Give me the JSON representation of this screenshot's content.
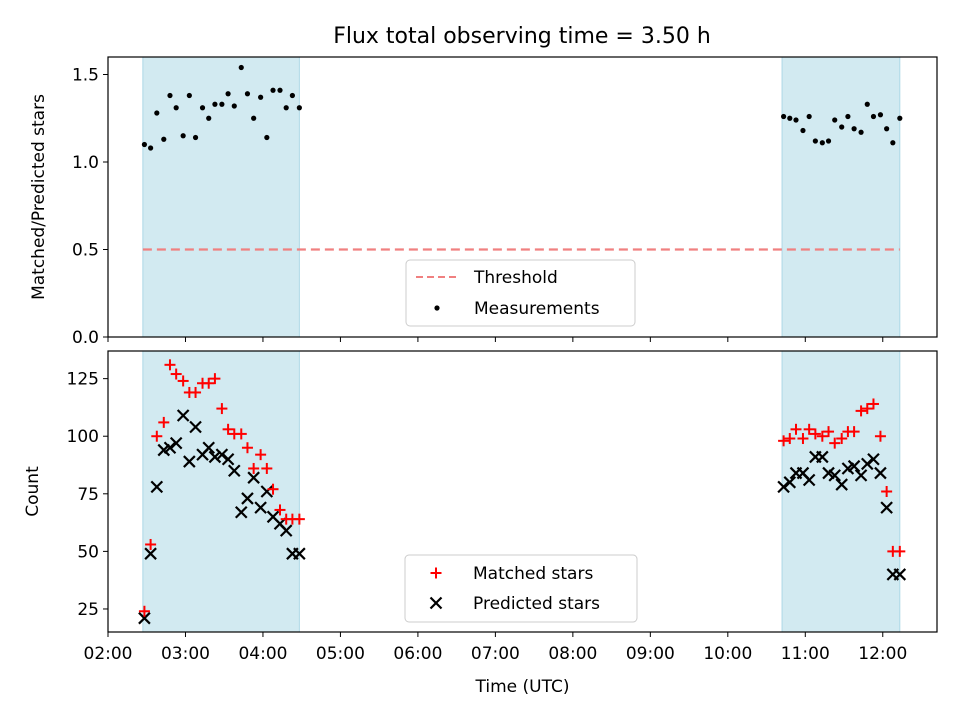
{
  "figure": {
    "title": "Flux total observing time = 3.50 h",
    "xlabel": "Time (UTC)"
  },
  "colors": {
    "band": "#add8e6",
    "threshold": "#f08080",
    "matched": "#ff0000",
    "predicted": "#000000",
    "measurement": "#000000"
  },
  "chart_data": [
    {
      "type": "scatter",
      "ylabel": "Matched/Predicted stars",
      "ylim": [
        0,
        1.6
      ],
      "yticks": [
        "0.0",
        "0.5",
        "1.0",
        "1.5"
      ],
      "ytick_values": [
        0,
        0.5,
        1.0,
        1.5
      ],
      "xlim": [
        2.0,
        12.7
      ],
      "observing_windows": [
        [
          2.45,
          4.47
        ],
        [
          10.7,
          12.22
        ]
      ],
      "threshold": {
        "name": "Threshold",
        "value": 0.5
      },
      "legend": [
        "Threshold",
        "Measurements"
      ],
      "legend_position": "lower center",
      "series": [
        {
          "name": "Measurements",
          "x": [
            2.47,
            2.55,
            2.63,
            2.72,
            2.8,
            2.88,
            2.97,
            3.05,
            3.13,
            3.22,
            3.3,
            3.38,
            3.47,
            3.55,
            3.63,
            3.72,
            3.8,
            3.88,
            3.97,
            4.05,
            4.13,
            4.22,
            4.3,
            4.38,
            4.47,
            10.72,
            10.8,
            10.88,
            10.97,
            11.05,
            11.13,
            11.22,
            11.3,
            11.38,
            11.47,
            11.55,
            11.63,
            11.72,
            11.8,
            11.88,
            11.97,
            12.05,
            12.13,
            12.22
          ],
          "y": [
            1.1,
            1.08,
            1.28,
            1.13,
            1.38,
            1.31,
            1.15,
            1.38,
            1.14,
            1.31,
            1.25,
            1.33,
            1.33,
            1.39,
            1.32,
            1.54,
            1.39,
            1.25,
            1.37,
            1.14,
            1.41,
            1.41,
            1.31,
            1.38,
            1.31,
            1.26,
            1.25,
            1.24,
            1.18,
            1.26,
            1.12,
            1.11,
            1.12,
            1.24,
            1.2,
            1.26,
            1.19,
            1.17,
            1.33,
            1.26,
            1.27,
            1.19,
            1.11,
            1.25
          ]
        }
      ]
    },
    {
      "type": "scatter",
      "ylabel": "Count",
      "ylim": [
        15,
        137
      ],
      "yticks": [
        "25",
        "50",
        "75",
        "100",
        "125"
      ],
      "ytick_values": [
        25,
        50,
        75,
        100,
        125
      ],
      "xlim": [
        2.0,
        12.7
      ],
      "xticks": [
        "02:00",
        "03:00",
        "04:00",
        "05:00",
        "06:00",
        "07:00",
        "08:00",
        "09:00",
        "10:00",
        "11:00",
        "12:00"
      ],
      "xtick_values": [
        2,
        3,
        4,
        5,
        6,
        7,
        8,
        9,
        10,
        11,
        12
      ],
      "observing_windows": [
        [
          2.45,
          4.47
        ],
        [
          10.7,
          12.22
        ]
      ],
      "legend": [
        "Matched stars",
        "Predicted stars"
      ],
      "legend_position": "lower center",
      "series": [
        {
          "name": "Matched stars",
          "x": [
            2.47,
            2.55,
            2.63,
            2.72,
            2.8,
            2.88,
            2.97,
            3.05,
            3.13,
            3.22,
            3.3,
            3.38,
            3.47,
            3.55,
            3.63,
            3.72,
            3.8,
            3.88,
            3.97,
            4.05,
            4.13,
            4.22,
            4.3,
            4.38,
            4.47,
            10.72,
            10.8,
            10.88,
            10.97,
            11.05,
            11.13,
            11.22,
            11.3,
            11.38,
            11.47,
            11.55,
            11.63,
            11.72,
            11.8,
            11.88,
            11.97,
            12.05,
            12.13,
            12.22
          ],
          "y": [
            24,
            53,
            100,
            106,
            131,
            127,
            124,
            119,
            119,
            123,
            123,
            125,
            112,
            103,
            101,
            101,
            95,
            86,
            92,
            86,
            77,
            68,
            64,
            64,
            64,
            98,
            99,
            103,
            99,
            103,
            101,
            100,
            102,
            97,
            99,
            102,
            102,
            111,
            112,
            114,
            100,
            76,
            50,
            50
          ]
        },
        {
          "name": "Predicted stars",
          "x": [
            2.47,
            2.55,
            2.63,
            2.72,
            2.8,
            2.88,
            2.97,
            3.05,
            3.13,
            3.22,
            3.3,
            3.38,
            3.47,
            3.55,
            3.63,
            3.72,
            3.8,
            3.88,
            3.97,
            4.05,
            4.13,
            4.22,
            4.3,
            4.38,
            4.47,
            10.72,
            10.8,
            10.88,
            10.97,
            11.05,
            11.13,
            11.22,
            11.3,
            11.38,
            11.47,
            11.55,
            11.63,
            11.72,
            11.8,
            11.88,
            11.97,
            12.05,
            12.13,
            12.22
          ],
          "y": [
            21,
            49,
            78,
            94,
            95,
            97,
            109,
            89,
            104,
            92,
            95,
            91,
            92,
            90,
            85,
            67,
            73,
            82,
            69,
            76,
            65,
            62,
            59,
            49,
            49,
            78,
            80,
            84,
            84,
            81,
            91,
            91,
            84,
            83,
            79,
            86,
            87,
            83,
            88,
            90,
            84,
            69,
            40,
            40
          ]
        }
      ]
    }
  ]
}
